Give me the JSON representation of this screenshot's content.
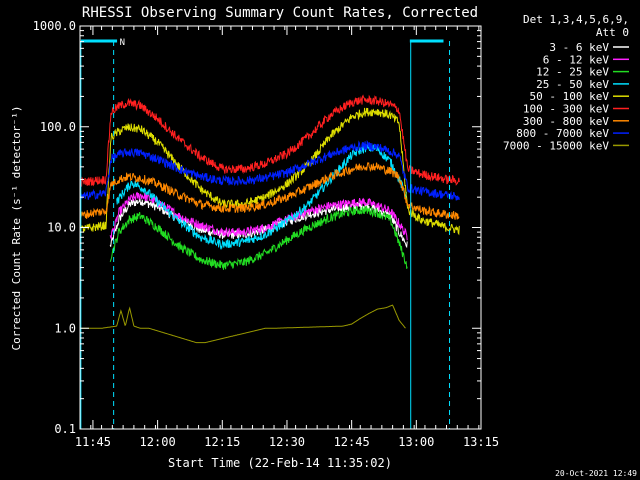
{
  "colors": {
    "background": "#000000",
    "axes": "#ffffff",
    "attenuator_bar": "#00e0ff",
    "night_marker": "#00e0ff"
  },
  "chart_data": {
    "type": "line",
    "title": "RHESSI Observing Summary Count Rates, Corrected",
    "xlabel": "Start Time (22-Feb-14 11:35:02)",
    "ylabel": "Corrected Count Rate (s⁻¹ detector⁻¹)",
    "yscale": "log",
    "ylim": [
      0.1,
      1000
    ],
    "xlim_minutes_after_1135": [
      7,
      100
    ],
    "x_ticks": [
      {
        "label": "11:45",
        "minutes": 10
      },
      {
        "label": "12:00",
        "minutes": 25
      },
      {
        "label": "12:15",
        "minutes": 40
      },
      {
        "label": "12:30",
        "minutes": 55
      },
      {
        "label": "12:45",
        "minutes": 70
      },
      {
        "label": "13:00",
        "minutes": 85
      },
      {
        "label": "13:15",
        "minutes": 100
      }
    ],
    "y_ticks": [
      {
        "label": "0.1",
        "value": 0.1
      },
      {
        "label": "1.0",
        "value": 1
      },
      {
        "label": "10.0",
        "value": 10
      },
      {
        "label": "100.0",
        "value": 100
      },
      {
        "label": "1000.0",
        "value": 1000
      }
    ],
    "legend_header": [
      "Det 1,3,4,5,6,9,",
      "Att 0"
    ],
    "legend_position": "top-right",
    "night_label": "N",
    "attenuator_bars": [
      [
        7.2,
        15.6
      ],
      [
        83.5,
        91.3
      ]
    ],
    "vertical_markers_dashed": [
      14.8,
      92.7
    ],
    "vertical_markers_solid": [
      7.2,
      83.7
    ],
    "series": [
      {
        "name": "3 - 6 keV",
        "color": "#ffffff",
        "x": [
          14.0,
          15.0,
          16.0,
          18.5,
          21,
          25,
          30,
          35,
          40,
          45,
          50,
          55,
          60,
          65,
          70,
          73,
          76,
          79,
          81,
          83
        ],
        "y": [
          6.5,
          8.5,
          12,
          17,
          18.5,
          16,
          12,
          9.5,
          8.5,
          8.5,
          9.5,
          11.5,
          13.5,
          15,
          16,
          16.5,
          15,
          13,
          9,
          6.5
        ]
      },
      {
        "name": "6 - 12 keV",
        "color": "#ff22ff",
        "x": [
          14.0,
          15.0,
          16.0,
          18.5,
          21,
          25,
          30,
          35,
          40,
          45,
          50,
          55,
          60,
          65,
          70,
          73,
          76,
          79,
          81,
          83
        ],
        "y": [
          8,
          10,
          14,
          19,
          21,
          18,
          13,
          10.5,
          9,
          9,
          10,
          12,
          14.5,
          16.5,
          17.5,
          18,
          16.5,
          14.5,
          11,
          8
        ]
      },
      {
        "name": "12 - 25 keV",
        "color": "#22dd22",
        "x": [
          14.0,
          15.0,
          16.0,
          18.5,
          21,
          25,
          30,
          35,
          40,
          45,
          50,
          55,
          60,
          65,
          70,
          73,
          76,
          79,
          81,
          83
        ],
        "y": [
          5,
          6.5,
          9,
          12,
          13,
          10,
          6.5,
          4.8,
          4.2,
          4.5,
          5.5,
          7.5,
          10,
          12.5,
          14.5,
          15,
          14,
          12,
          7,
          4
        ]
      },
      {
        "name": "25 - 50 keV",
        "color": "#00e0ff",
        "x": [
          15.5,
          17,
          19,
          22,
          25,
          30,
          35,
          40,
          45,
          50,
          55,
          60,
          65,
          70,
          73,
          76,
          79,
          81,
          82.8
        ],
        "y": [
          18,
          22,
          28,
          24,
          18,
          11.5,
          8,
          6.8,
          7.2,
          8.5,
          11.5,
          17,
          30,
          52,
          62,
          60,
          45,
          30,
          20
        ]
      },
      {
        "name": "50 - 100 keV",
        "color": "#dddd00",
        "x": [
          7,
          10,
          13,
          14.2,
          16,
          18,
          21,
          25,
          30,
          35,
          40,
          45,
          50,
          55,
          60,
          65,
          70,
          73,
          76,
          79,
          81,
          83,
          86,
          89,
          92,
          95
        ],
        "y": [
          9.5,
          10,
          10.5,
          78,
          90,
          98,
          95,
          70,
          40,
          24,
          17,
          17,
          20,
          27,
          42,
          80,
          125,
          140,
          142,
          130,
          110,
          15,
          12,
          11,
          10,
          9.5
        ]
      },
      {
        "name": "100 - 300 keV",
        "color": "#ff2020",
        "x": [
          7,
          10,
          13,
          14.2,
          16,
          18,
          21,
          25,
          30,
          35,
          40,
          45,
          50,
          55,
          60,
          65,
          70,
          73,
          76,
          79,
          81,
          83,
          86,
          89,
          92,
          95
        ],
        "y": [
          28,
          29,
          30,
          140,
          160,
          172,
          162,
          120,
          75,
          50,
          38,
          38,
          43,
          54,
          80,
          130,
          175,
          185,
          180,
          165,
          148,
          38,
          34,
          32,
          30,
          29
        ]
      },
      {
        "name": "300 - 800 keV",
        "color": "#ff8800",
        "x": [
          7,
          10,
          13,
          14.2,
          16,
          18,
          21,
          25,
          30,
          35,
          40,
          45,
          50,
          55,
          60,
          65,
          70,
          73,
          76,
          79,
          81,
          83,
          86,
          89,
          92,
          95
        ],
        "y": [
          13,
          14,
          14.5,
          27,
          30,
          32,
          31,
          27,
          21,
          17,
          15.5,
          15.5,
          17,
          20,
          25,
          32,
          38,
          41,
          40,
          36,
          32,
          17,
          15,
          14,
          13.5,
          13
        ]
      },
      {
        "name": "800 - 7000 keV",
        "color": "#0020ff",
        "x": [
          7,
          10,
          13,
          14.2,
          16,
          18,
          21,
          25,
          30,
          35,
          40,
          45,
          50,
          55,
          60,
          65,
          70,
          73,
          76,
          79,
          81,
          83,
          86,
          89,
          92,
          95
        ],
        "y": [
          20,
          21,
          22,
          48,
          53,
          56,
          55,
          48,
          38,
          32,
          29,
          29,
          31,
          35,
          43,
          53,
          62,
          65,
          63,
          57,
          52,
          25,
          23,
          22,
          21,
          20
        ]
      },
      {
        "name": "7000 - 15000 keV",
        "color": "#999900",
        "x": [
          7,
          9,
          12,
          15.5,
          16.5,
          17.5,
          18.5,
          19.5,
          21,
          23,
          34,
          36,
          50,
          52,
          68,
          70,
          72,
          74,
          76,
          78,
          79.5,
          81,
          82.5
        ],
        "y": [
          1.0,
          1.0,
          1.0,
          1.05,
          1.5,
          1.05,
          1.6,
          1.05,
          1.0,
          1.0,
          0.72,
          0.72,
          1.0,
          1.0,
          1.05,
          1.1,
          1.25,
          1.4,
          1.55,
          1.6,
          1.7,
          1.2,
          1.0
        ]
      }
    ]
  },
  "footer_timestamp": "20-Oct-2021 12:49"
}
